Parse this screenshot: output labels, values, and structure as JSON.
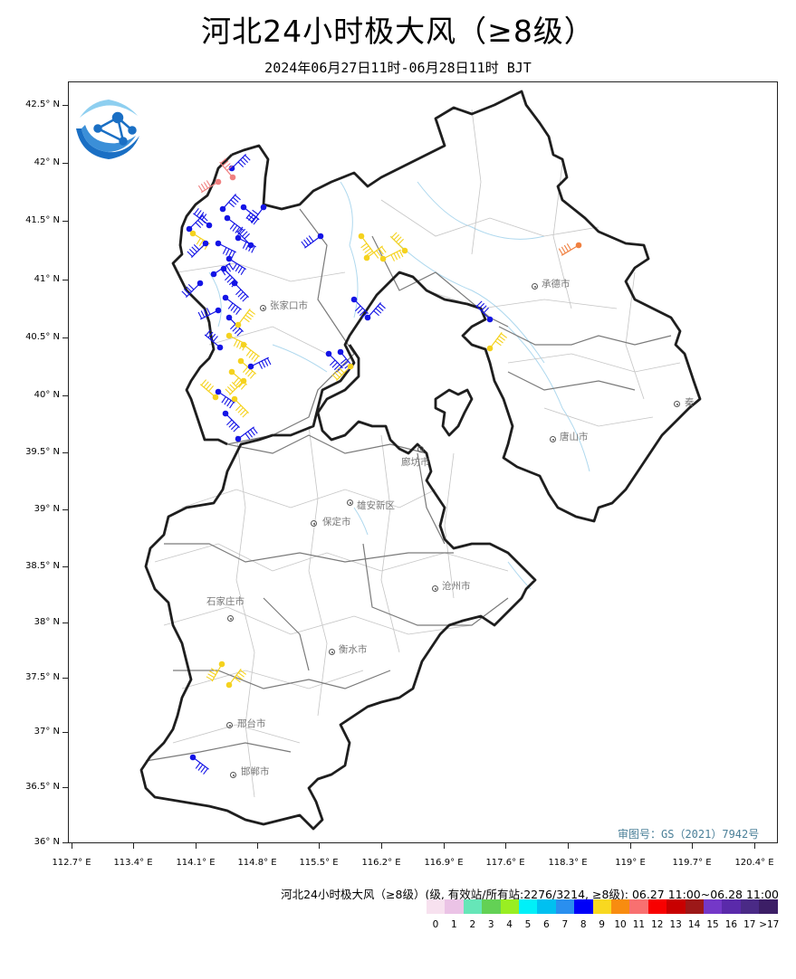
{
  "title": "河北24小时极大风（≥8级）",
  "subtitle": "2024年06月27日11时-06月28日11时 BJT",
  "approval_number": "审图号：GS（2021）7942号",
  "y_axis_labels": [
    "42.5° N",
    "42° N",
    "41.5° N",
    "41° N",
    "40.5° N",
    "40° N",
    "39.5° N",
    "39° N",
    "38.5° N",
    "38° N",
    "37.5° N",
    "37° N",
    "36.5° N",
    "36° N"
  ],
  "x_axis_labels": [
    "112.7° E",
    "113.4° E",
    "114.1° E",
    "114.8° E",
    "115.5° E",
    "116.2° E",
    "116.9° E",
    "117.6° E",
    "118.3° E",
    "119° E",
    "119.7° E",
    "120.4° E"
  ],
  "cities": [
    {
      "name": "张家口市",
      "icon": "city-marker-icon"
    },
    {
      "name": "承德市",
      "icon": "city-marker-icon"
    },
    {
      "name": "唐山市",
      "icon": "city-marker-icon"
    },
    {
      "name": "秦皇岛市",
      "display": "秦",
      "icon": "city-marker-icon"
    },
    {
      "name": "廊坊市",
      "icon": "city-marker-icon"
    },
    {
      "name": "雄安新区",
      "icon": "city-marker-icon"
    },
    {
      "name": "保定市",
      "icon": "city-marker-icon"
    },
    {
      "name": "沧州市",
      "icon": "city-marker-icon"
    },
    {
      "name": "石家庄市",
      "icon": "city-marker-icon"
    },
    {
      "name": "衡水市",
      "icon": "city-marker-icon"
    },
    {
      "name": "邢台市",
      "icon": "city-marker-icon"
    },
    {
      "name": "邯郸市",
      "icon": "city-marker-icon"
    }
  ],
  "legend": {
    "title": "河北24小时极大风（≥8级）(级, 有效站/所有站:2276/3214, ≥8级): 06.27 11:00~06.28 11:00",
    "labels": [
      "0",
      "1",
      "2",
      "3",
      "4",
      "5",
      "6",
      "7",
      "8",
      "9",
      "10",
      "11",
      "12",
      "13",
      "14",
      "15",
      "16",
      "17",
      ">17"
    ],
    "colors": [
      "#f7e1ef",
      "#ebc3e6",
      "#66e6b8",
      "#63d155",
      "#99ee22",
      "#00f0f8",
      "#00c0f0",
      "#2a8fef",
      "#0000f8",
      "#f8d820",
      "#f88c10",
      "#f87070",
      "#f80000",
      "#c80000",
      "#9c1818",
      "#7438c8",
      "#5a2aaa",
      "#4a2a86",
      "#3c1e66"
    ]
  },
  "logo": {
    "icon": "cma-globe-logo-icon",
    "colors": {
      "primary": "#1a6fc4",
      "light": "#8ecff0"
    }
  },
  "station_colors": {
    "level_9": "#1414e6",
    "level_10": "#f5d21e",
    "level_11": "#f08040",
    "level_12": "#f08080"
  }
}
